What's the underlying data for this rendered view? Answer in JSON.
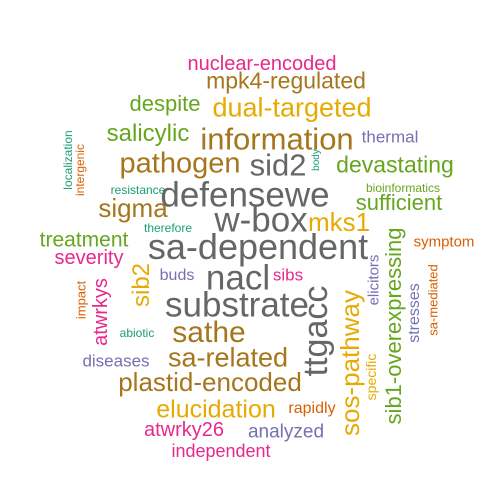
{
  "palette": {
    "teal": "#1b9e77",
    "orange": "#d95f02",
    "purple": "#7570b3",
    "magenta": "#e7298a",
    "green": "#66a61e",
    "gold": "#e6ab02",
    "brown": "#a6761d",
    "gray": "#666666"
  },
  "words": [
    {
      "text": "nuclear-encoded",
      "color": "magenta",
      "weight": 4
    },
    {
      "text": "mpk4-regulated",
      "color": "brown",
      "weight": 5
    },
    {
      "text": "despite",
      "color": "green",
      "weight": 4
    },
    {
      "text": "dual-targeted",
      "color": "gold",
      "weight": 6
    },
    {
      "text": "salicylic",
      "color": "green",
      "weight": 5
    },
    {
      "text": "information",
      "color": "brown",
      "weight": 7
    },
    {
      "text": "thermal",
      "color": "purple",
      "weight": 3
    },
    {
      "text": "localization",
      "color": "teal",
      "weight": 2
    },
    {
      "text": "intergenic",
      "color": "orange",
      "weight": 2
    },
    {
      "text": "body",
      "color": "teal",
      "weight": 1
    },
    {
      "text": "pathogen",
      "color": "brown",
      "weight": 6
    },
    {
      "text": "sid2",
      "color": "gray",
      "weight": 7
    },
    {
      "text": "devastating",
      "color": "green",
      "weight": 5
    },
    {
      "text": "resistance",
      "color": "teal",
      "weight": 2
    },
    {
      "text": "defensewe",
      "color": "gray",
      "weight": 8
    },
    {
      "text": "bioinformatics",
      "color": "green",
      "weight": 2
    },
    {
      "text": "sigma",
      "color": "brown",
      "weight": 6
    },
    {
      "text": "therefore",
      "color": "teal",
      "weight": 2
    },
    {
      "text": "w-box",
      "color": "gray",
      "weight": 8
    },
    {
      "text": "mks1",
      "color": "gold",
      "weight": 6
    },
    {
      "text": "sufficient",
      "color": "green",
      "weight": 5
    },
    {
      "text": "treatment",
      "color": "green",
      "weight": 5
    },
    {
      "text": "sa-dependent",
      "color": "gray",
      "weight": 8
    },
    {
      "text": "sib1-overexpressing",
      "color": "green",
      "weight": 5
    },
    {
      "text": "symptom",
      "color": "orange",
      "weight": 3
    },
    {
      "text": "severity",
      "color": "magenta",
      "weight": 5
    },
    {
      "text": "elicitors",
      "color": "purple",
      "weight": 3
    },
    {
      "text": "sa-mediated",
      "color": "orange",
      "weight": 2
    },
    {
      "text": "sib2",
      "color": "gold",
      "weight": 5
    },
    {
      "text": "buds",
      "color": "purple",
      "weight": 3
    },
    {
      "text": "nacl",
      "color": "gray",
      "weight": 8
    },
    {
      "text": "sibs",
      "color": "magenta",
      "weight": 3
    },
    {
      "text": "stresses",
      "color": "purple",
      "weight": 3
    },
    {
      "text": "atwrkys",
      "color": "magenta",
      "weight": 4
    },
    {
      "text": "impact",
      "color": "orange",
      "weight": 2
    },
    {
      "text": "substrate",
      "color": "gray",
      "weight": 8
    },
    {
      "text": "ttgacc",
      "color": "gray",
      "weight": 8
    },
    {
      "text": "sos-pathway",
      "color": "gold",
      "weight": 6
    },
    {
      "text": "abiotic",
      "color": "teal",
      "weight": 2
    },
    {
      "text": "sathe",
      "color": "brown",
      "weight": 7
    },
    {
      "text": "specific",
      "color": "gold",
      "weight": 3
    },
    {
      "text": "diseases",
      "color": "purple",
      "weight": 3
    },
    {
      "text": "sa-related",
      "color": "brown",
      "weight": 6
    },
    {
      "text": "plastid-encoded",
      "color": "brown",
      "weight": 6
    },
    {
      "text": "elucidation",
      "color": "gold",
      "weight": 6
    },
    {
      "text": "rapidly",
      "color": "orange",
      "weight": 3
    },
    {
      "text": "atwrky26",
      "color": "magenta",
      "weight": 4
    },
    {
      "text": "analyzed",
      "color": "purple",
      "weight": 4
    },
    {
      "text": "independent",
      "color": "magenta",
      "weight": 4
    }
  ]
}
